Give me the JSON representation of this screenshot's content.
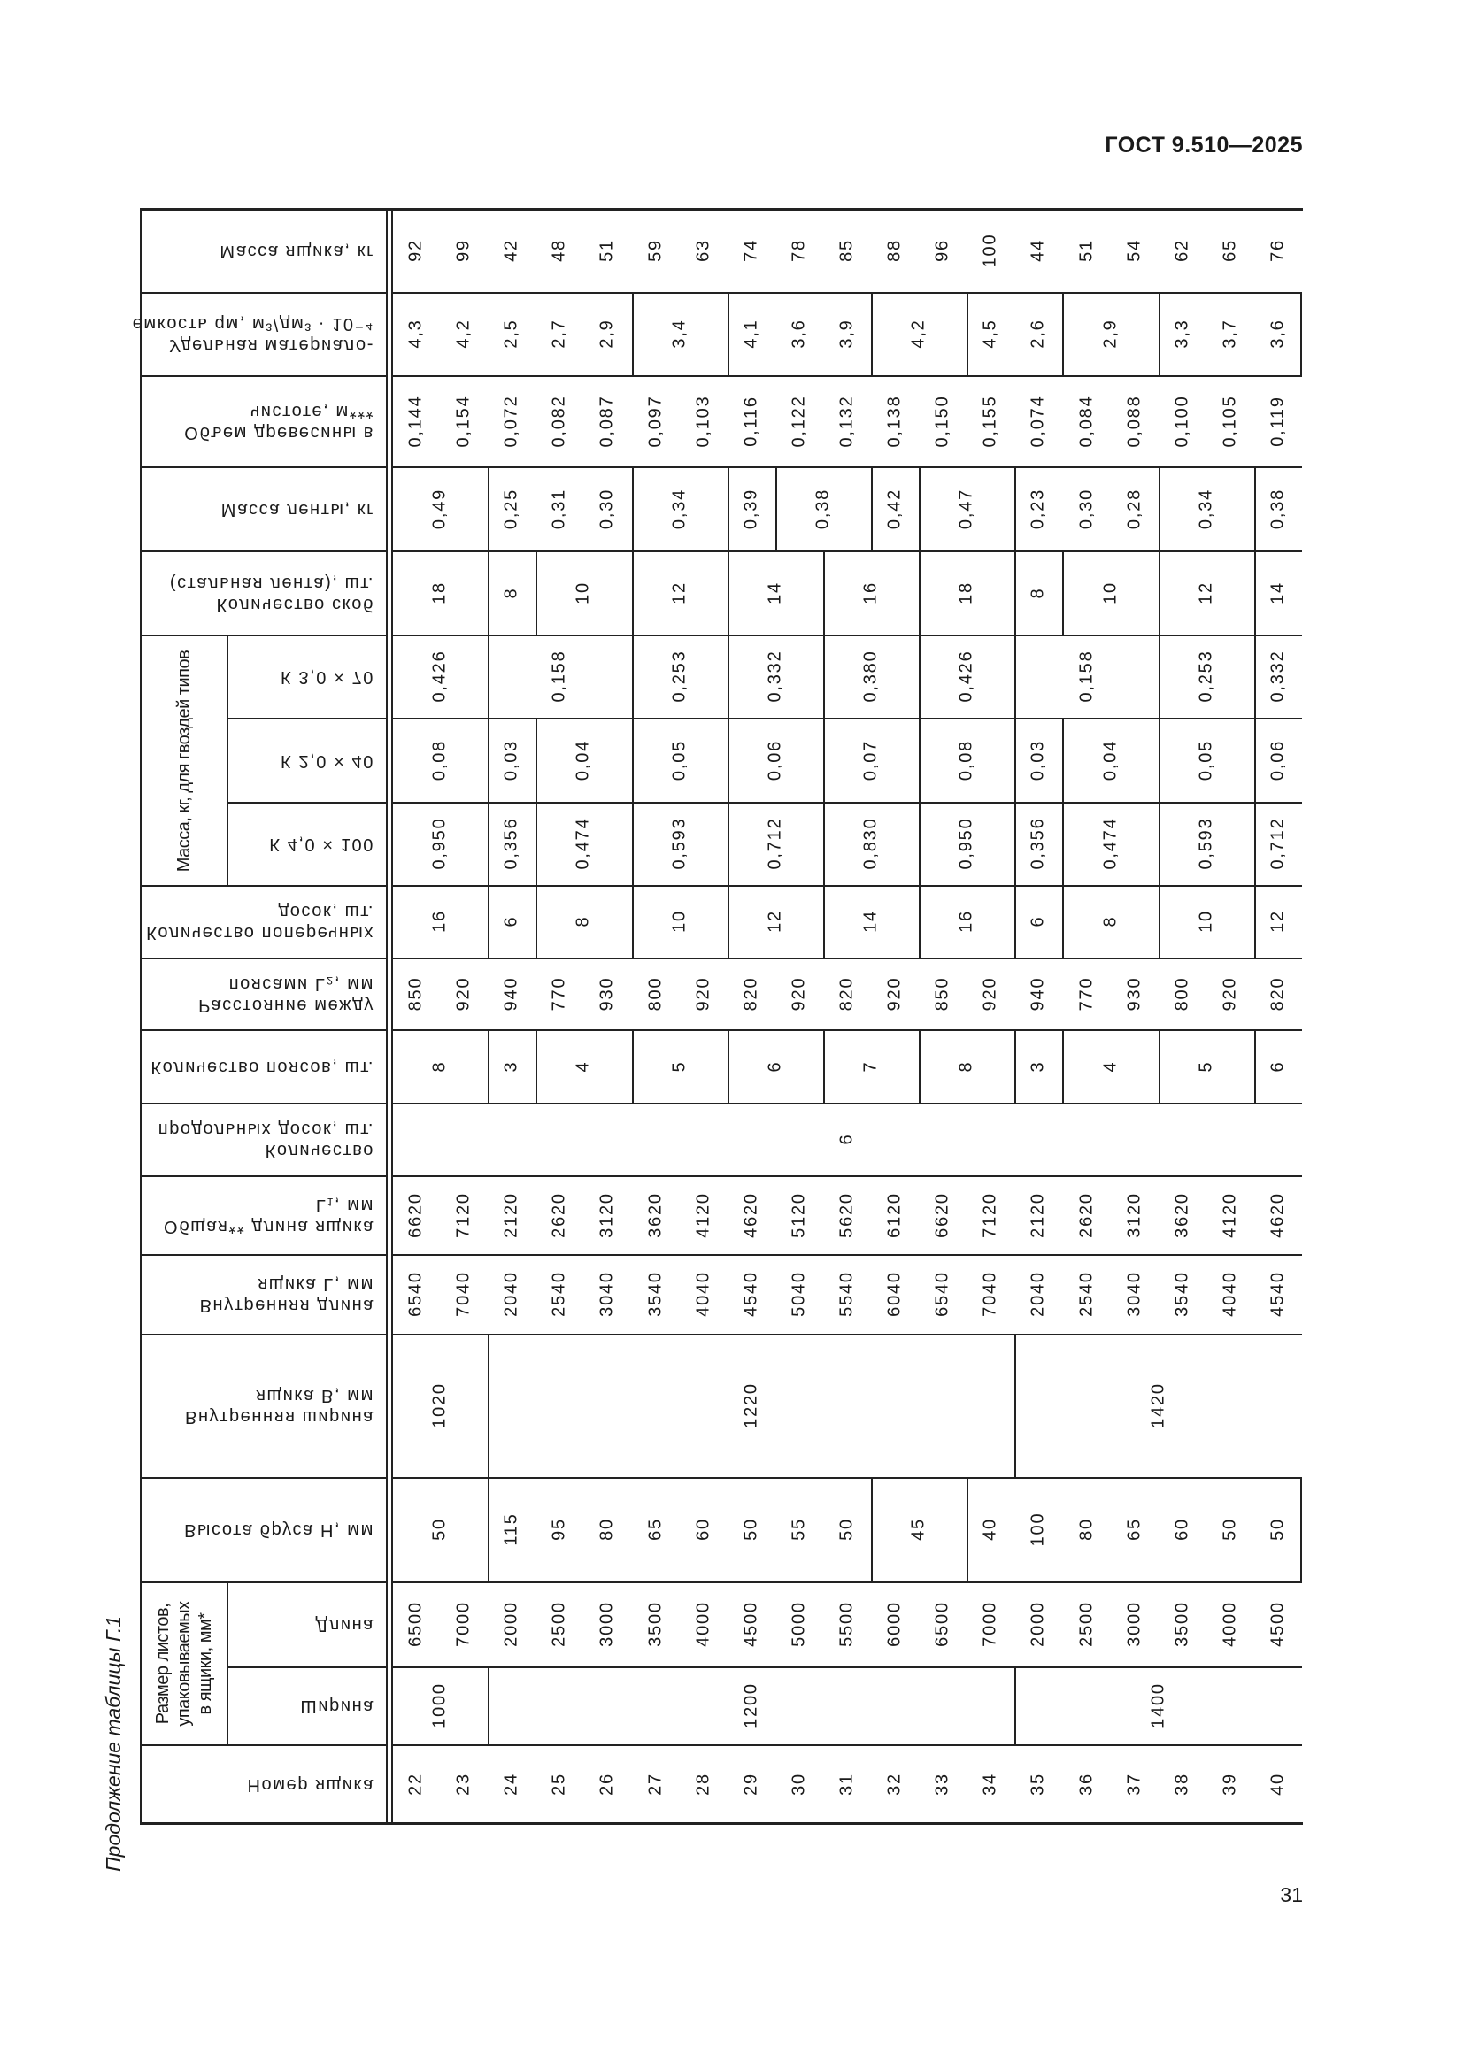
{
  "header": {
    "doc_id": "ГОСТ 9.510—2025"
  },
  "caption": "Продолжение таблицы Г.1",
  "page_number": "31",
  "table": {
    "group_headers": {
      "sheet_size": "Размер листов, упаковываемых в ящики, мм*",
      "nails_mass": "Масса, кг, для гвоздей типов"
    },
    "rows": [
      {
        "key": "number",
        "header": [
          "Номер ящика"
        ],
        "groups": [
          {
            "span": 19,
            "values": [
              "22",
              "23",
              "24",
              "25",
              "26",
              "27",
              "28",
              "29",
              "30",
              "31",
              "32",
              "33",
              "34",
              "35",
              "36",
              "37",
              "38",
              "39",
              "40"
            ]
          }
        ]
      },
      {
        "key": "sheet_width",
        "header": [
          "Ширина"
        ],
        "groups": [
          {
            "span": 2,
            "values": [
              "1000"
            ]
          },
          {
            "span": 11,
            "values": [
              "1200"
            ]
          },
          {
            "span": 6,
            "values": [
              "1400"
            ]
          }
        ]
      },
      {
        "key": "sheet_length",
        "header": [
          "Длина"
        ],
        "groups": [
          {
            "span": 19,
            "values": [
              "6500",
              "7000",
              "2000",
              "2500",
              "3000",
              "3500",
              "4000",
              "4500",
              "5000",
              "5500",
              "6000",
              "6500",
              "7000",
              "2000",
              "2500",
              "3000",
              "3500",
              "4000",
              "4500"
            ]
          }
        ]
      },
      {
        "key": "bar_height",
        "header": [
          "Высота бруса H, мм"
        ],
        "groups": [
          {
            "span": 2,
            "values": [
              "50"
            ]
          },
          {
            "span": 8,
            "values": [
              "115",
              "95",
              "80",
              "65",
              "60",
              "50",
              "55",
              "50"
            ]
          },
          {
            "span": 2,
            "values": [
              "45"
            ]
          },
          {
            "span": 7,
            "values": [
              "40",
              "100",
              "80",
              "65",
              "60",
              "50",
              "50"
            ],
            "right": true
          }
        ]
      },
      {
        "key": "inner_width",
        "header": [
          "Внутренняя ширина",
          "ящика B, мм"
        ],
        "groups": [
          {
            "span": 2,
            "values": [
              "1020"
            ]
          },
          {
            "span": 11,
            "values": [
              "1220"
            ]
          },
          {
            "span": 6,
            "values": [
              "1420"
            ]
          }
        ]
      },
      {
        "key": "inner_length",
        "header": [
          "Внутренняя длина",
          "ящика L, мм"
        ],
        "groups": [
          {
            "span": 19,
            "values": [
              "6540",
              "7040",
              "2040",
              "2540",
              "3040",
              "3540",
              "4040",
              "4540",
              "5040",
              "5540",
              "6040",
              "6540",
              "7040",
              "2040",
              "2540",
              "3040",
              "3540",
              "4040",
              "4540"
            ]
          }
        ]
      },
      {
        "key": "total_length",
        "header": [
          "Общая** длина ящика",
          "L₁, мм"
        ],
        "groups": [
          {
            "span": 19,
            "values": [
              "6620",
              "7120",
              "2120",
              "2620",
              "3120",
              "3620",
              "4120",
              "4620",
              "5120",
              "5620",
              "6120",
              "6620",
              "7120",
              "2120",
              "2620",
              "3120",
              "3620",
              "4120",
              "4620"
            ]
          }
        ]
      },
      {
        "key": "long_boards",
        "header": [
          "Количество",
          "продольных досок, шт."
        ],
        "groups": [
          {
            "span": 19,
            "values": [
              "6"
            ]
          }
        ]
      },
      {
        "key": "belts",
        "header": [
          "Количество поясов, шт."
        ],
        "groups": [
          {
            "span": 2,
            "values": [
              "8"
            ]
          },
          {
            "span": 1,
            "values": [
              "3"
            ]
          },
          {
            "span": 2,
            "values": [
              "4"
            ]
          },
          {
            "span": 2,
            "values": [
              "5"
            ]
          },
          {
            "span": 2,
            "values": [
              "6"
            ]
          },
          {
            "span": 2,
            "values": [
              "7"
            ]
          },
          {
            "span": 2,
            "values": [
              "8"
            ]
          },
          {
            "span": 1,
            "values": [
              "3"
            ]
          },
          {
            "span": 2,
            "values": [
              "4"
            ]
          },
          {
            "span": 2,
            "values": [
              "5"
            ]
          },
          {
            "span": 1,
            "values": [
              "6"
            ]
          }
        ]
      },
      {
        "key": "belt_distance",
        "header": [
          "Расстояние между",
          "поясами L₂, мм"
        ],
        "groups": [
          {
            "span": 19,
            "values": [
              "850",
              "920",
              "940",
              "770",
              "930",
              "800",
              "920",
              "820",
              "920",
              "820",
              "920",
              "850",
              "920",
              "940",
              "770",
              "930",
              "800",
              "920",
              "820"
            ]
          }
        ]
      },
      {
        "key": "cross_boards",
        "header": [
          "Количество поперечных",
          "досок, шт."
        ],
        "groups": [
          {
            "span": 2,
            "values": [
              "16"
            ]
          },
          {
            "span": 1,
            "values": [
              "6"
            ]
          },
          {
            "span": 2,
            "values": [
              "8"
            ]
          },
          {
            "span": 2,
            "values": [
              "10"
            ]
          },
          {
            "span": 2,
            "values": [
              "12"
            ]
          },
          {
            "span": 2,
            "values": [
              "14"
            ]
          },
          {
            "span": 2,
            "values": [
              "16"
            ]
          },
          {
            "span": 1,
            "values": [
              "6"
            ]
          },
          {
            "span": 2,
            "values": [
              "8"
            ]
          },
          {
            "span": 2,
            "values": [
              "10"
            ]
          },
          {
            "span": 1,
            "values": [
              "12"
            ]
          }
        ]
      },
      {
        "key": "nail_k4",
        "header": [
          "К 4,0 × 100"
        ],
        "groups": [
          {
            "span": 2,
            "values": [
              "0,950"
            ]
          },
          {
            "span": 1,
            "values": [
              "0,356"
            ]
          },
          {
            "span": 2,
            "values": [
              "0,474"
            ]
          },
          {
            "span": 2,
            "values": [
              "0,593"
            ]
          },
          {
            "span": 2,
            "values": [
              "0,712"
            ]
          },
          {
            "span": 2,
            "values": [
              "0,830"
            ]
          },
          {
            "span": 2,
            "values": [
              "0,950"
            ]
          },
          {
            "span": 1,
            "values": [
              "0,356"
            ]
          },
          {
            "span": 2,
            "values": [
              "0,474"
            ]
          },
          {
            "span": 2,
            "values": [
              "0,593"
            ]
          },
          {
            "span": 1,
            "values": [
              "0,712"
            ]
          }
        ]
      },
      {
        "key": "nail_k2",
        "header": [
          "К 2,0 × 40"
        ],
        "groups": [
          {
            "span": 2,
            "values": [
              "0,08"
            ]
          },
          {
            "span": 1,
            "values": [
              "0,03"
            ]
          },
          {
            "span": 2,
            "values": [
              "0,04"
            ]
          },
          {
            "span": 2,
            "values": [
              "0,05"
            ]
          },
          {
            "span": 2,
            "values": [
              "0,06"
            ]
          },
          {
            "span": 2,
            "values": [
              "0,07"
            ]
          },
          {
            "span": 2,
            "values": [
              "0,08"
            ]
          },
          {
            "span": 1,
            "values": [
              "0,03"
            ]
          },
          {
            "span": 2,
            "values": [
              "0,04"
            ]
          },
          {
            "span": 2,
            "values": [
              "0,05"
            ]
          },
          {
            "span": 1,
            "values": [
              "0,06"
            ]
          }
        ]
      },
      {
        "key": "nail_k3",
        "header": [
          "К 3,0 × 70"
        ],
        "groups": [
          {
            "span": 2,
            "values": [
              "0,426"
            ]
          },
          {
            "span": 3,
            "values": [
              "0,158"
            ]
          },
          {
            "span": 2,
            "values": [
              "0,253"
            ]
          },
          {
            "span": 2,
            "values": [
              "0,332"
            ]
          },
          {
            "span": 2,
            "values": [
              "0,380"
            ]
          },
          {
            "span": 2,
            "values": [
              "0,426"
            ]
          },
          {
            "span": 3,
            "values": [
              "0,158"
            ]
          },
          {
            "span": 2,
            "values": [
              "0,253"
            ]
          },
          {
            "span": 1,
            "values": [
              "0,332"
            ]
          }
        ]
      },
      {
        "key": "staples",
        "header": [
          "Количество скоб",
          "(стальная лента), шт."
        ],
        "groups": [
          {
            "span": 2,
            "values": [
              "18"
            ]
          },
          {
            "span": 1,
            "values": [
              "8"
            ]
          },
          {
            "span": 2,
            "values": [
              "10"
            ]
          },
          {
            "span": 2,
            "values": [
              "12"
            ]
          },
          {
            "span": 2,
            "values": [
              "14"
            ]
          },
          {
            "span": 2,
            "values": [
              "16"
            ]
          },
          {
            "span": 2,
            "values": [
              "18"
            ]
          },
          {
            "span": 1,
            "values": [
              "8"
            ]
          },
          {
            "span": 2,
            "values": [
              "10"
            ]
          },
          {
            "span": 2,
            "values": [
              "12"
            ]
          },
          {
            "span": 1,
            "values": [
              "14"
            ]
          }
        ]
      },
      {
        "key": "tape_mass",
        "header": [
          "Масса ленты, кг"
        ],
        "groups": [
          {
            "span": 2,
            "values": [
              "0,49"
            ]
          },
          {
            "span": 3,
            "values": [
              "0,25",
              "0,31",
              "0,30"
            ]
          },
          {
            "span": 2,
            "values": [
              "0,34"
            ]
          },
          {
            "span": 1,
            "values": [
              "0,39"
            ]
          },
          {
            "span": 2,
            "values": [
              "0,38"
            ]
          },
          {
            "span": 1,
            "values": [
              "0,42"
            ]
          },
          {
            "span": 2,
            "values": [
              "0,47"
            ]
          },
          {
            "span": 3,
            "values": [
              "0,23",
              "0,30",
              "0,28"
            ]
          },
          {
            "span": 2,
            "values": [
              "0,34"
            ]
          },
          {
            "span": 1,
            "values": [
              "0,38"
            ]
          }
        ]
      },
      {
        "key": "wood_volume",
        "header": [
          "Объем древесины в",
          "чистоте, м***"
        ],
        "groups": [
          {
            "span": 19,
            "values": [
              "0,144",
              "0,154",
              "0,072",
              "0,082",
              "0,087",
              "0,097",
              "0,103",
              "0,116",
              "0,122",
              "0,132",
              "0,138",
              "0,150",
              "0,155",
              "0,074",
              "0,084",
              "0,088",
              "0,100",
              "0,105",
              "0,119"
            ]
          }
        ]
      },
      {
        "key": "material_capacity",
        "header": [
          "Удельная материало-",
          "емкость qм, м³/дм³ · 10⁻⁴"
        ],
        "groups": [
          {
            "span": 5,
            "values": [
              "4,3",
              "4,2",
              "2,5",
              "2,7",
              "2,9"
            ]
          },
          {
            "span": 2,
            "values": [
              "3,4"
            ]
          },
          {
            "span": 3,
            "values": [
              "4,1",
              "3,6",
              "3,9"
            ]
          },
          {
            "span": 2,
            "values": [
              "4,2"
            ]
          },
          {
            "span": 2,
            "values": [
              "4,5",
              "2,6"
            ]
          },
          {
            "span": 2,
            "values": [
              "2,9"
            ]
          },
          {
            "span": 3,
            "values": [
              "3,3",
              "3,7",
              "3,6"
            ],
            "right": true
          }
        ]
      },
      {
        "key": "box_mass",
        "header": [
          "Масса ящика, кг"
        ],
        "groups": [
          {
            "span": 19,
            "values": [
              "92",
              "99",
              "42",
              "48",
              "51",
              "59",
              "63",
              "74",
              "78",
              "85",
              "88",
              "96",
              "100",
              "44",
              "51",
              "54",
              "62",
              "65",
              "76"
            ]
          }
        ]
      }
    ]
  }
}
